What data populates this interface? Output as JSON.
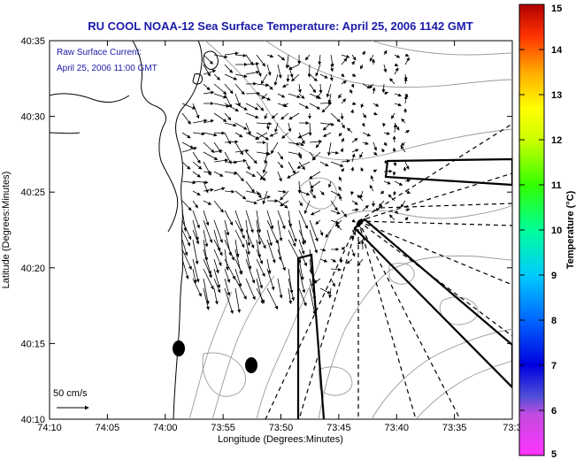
{
  "title": "RU COOL  NOAA-12  Sea Surface Temperature:  April 25, 2006 1142 GMT",
  "annotation": {
    "line1": "Raw Surface Current:",
    "line2": "April 25, 2006 11:00 GMT"
  },
  "x_axis": {
    "label": "Longitude (Degrees:Minutes)",
    "ticks": [
      "74:10",
      "74:05",
      "74:00",
      "73:55",
      "73:50",
      "73:45",
      "73:40",
      "73:35",
      "73:3"
    ]
  },
  "y_axis": {
    "label": "Latitude (Degrees:Minutes)",
    "ticks": [
      "40:35",
      "40:30",
      "40:25",
      "40:20",
      "40:15",
      "40:10"
    ]
  },
  "scale_arrow": {
    "label": "50 cm/s"
  },
  "colorbar": {
    "label": "Temperature (°C)",
    "ticks": [
      "15",
      "14",
      "13",
      "12",
      "11",
      "10",
      "9",
      "8",
      "7",
      "6",
      "5"
    ],
    "colors": [
      "#ff33ff",
      "#0000e0",
      "#0066ff",
      "#00ccff",
      "#00ff99",
      "#33ff00",
      "#ccff00",
      "#ffff00",
      "#ffaa00",
      "#ff3300",
      "#b00000"
    ]
  },
  "markers": {
    "buoy_count": 2
  }
}
